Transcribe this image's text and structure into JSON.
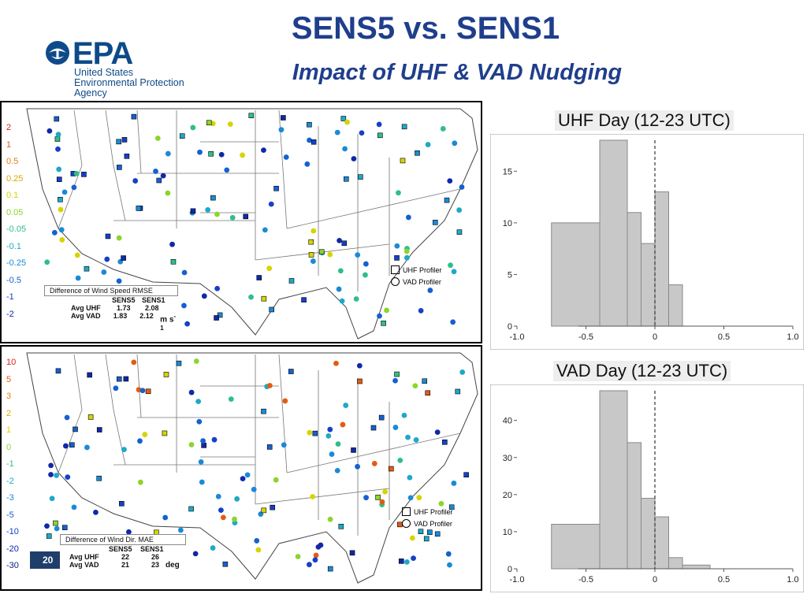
{
  "logo": {
    "word": "EPA",
    "line1": "United States",
    "line2": "Environmental Protection",
    "line3": "Agency"
  },
  "header": {
    "title": "SENS5 vs. SENS1",
    "subtitle": "Impact of UHF & VAD Nudging"
  },
  "colors": {
    "title": "#1f3e8c",
    "epa": "#0e4a8a",
    "bar": "#c8c8c8"
  },
  "map_top": {
    "scale": [
      {
        "label": "2",
        "color": "#d62020"
      },
      {
        "label": "1",
        "color": "#e55a10"
      },
      {
        "label": "0.5",
        "color": "#e87d12"
      },
      {
        "label": "0.25",
        "color": "#d9a800"
      },
      {
        "label": "0.1",
        "color": "#d6d400"
      },
      {
        "label": "0.05",
        "color": "#8ad62a"
      },
      {
        "label": "-0.05",
        "color": "#2fbf86"
      },
      {
        "label": "-0.1",
        "color": "#1fa8c8"
      },
      {
        "label": "-0.25",
        "color": "#1a8ad6"
      },
      {
        "label": "-0.5",
        "color": "#1660d0"
      },
      {
        "label": "-1",
        "color": "#1540c8"
      },
      {
        "label": "-2",
        "color": "#1028a8"
      }
    ],
    "stats_title": "Difference of Wind Speed RMSE",
    "col1": "SENS5",
    "col2": "SENS1",
    "row1_label": "Avg UHF",
    "row1_v1": "1.73",
    "row1_v2": "2.08",
    "row2_label": "Avg VAD",
    "row2_v1": "1.83",
    "row2_v2": "2.12",
    "unit": "m s",
    "unit_sup": "-1",
    "legend_uhf": "UHF Profiler",
    "legend_vad": "VAD Profiler"
  },
  "map_bottom": {
    "scale": [
      {
        "label": "10",
        "color": "#d62020"
      },
      {
        "label": "5",
        "color": "#e55a10"
      },
      {
        "label": "3",
        "color": "#e87d12"
      },
      {
        "label": "2",
        "color": "#d9a800"
      },
      {
        "label": "1",
        "color": "#d6d400"
      },
      {
        "label": "0",
        "color": "#8ad62a"
      },
      {
        "label": "-1",
        "color": "#2fbf86"
      },
      {
        "label": "-2",
        "color": "#1fa8c8"
      },
      {
        "label": "-3",
        "color": "#1a8ad6"
      },
      {
        "label": "-5",
        "color": "#1660d0"
      },
      {
        "label": "-10",
        "color": "#1540c8"
      },
      {
        "label": "-20",
        "color": "#1028a8"
      },
      {
        "label": "-30",
        "color": "#0b1d80"
      }
    ],
    "page_badge": "20",
    "stats_title": "Difference of Wind Dir. MAE",
    "col1": "SENS5",
    "col2": "SENS1",
    "row1_label": "Avg UHF",
    "row1_v1": "22",
    "row1_v2": "26",
    "row2_label": "Avg VAD",
    "row2_v1": "21",
    "row2_v2": "23",
    "unit": "deg",
    "legend_uhf": "UHF Profiler",
    "legend_vad": "VAD Profiler"
  },
  "chart_data": [
    {
      "type": "bar",
      "title": "UHF Day (12-23 UTC)",
      "xlim": [
        -1.0,
        1.0
      ],
      "ylim": [
        0,
        18
      ],
      "xticks": [
        "-1.0",
        "-0.5",
        "0",
        "0.5",
        "1.0"
      ],
      "yticks": [
        "0",
        "5",
        "10",
        "15"
      ],
      "ytick_values": [
        0,
        5,
        10,
        15
      ],
      "xtick_values": [
        -1.0,
        -0.5,
        0,
        0.5,
        1.0
      ],
      "bins": [
        {
          "x0": -0.75,
          "x1": -0.4,
          "value": 10
        },
        {
          "x0": -0.4,
          "x1": -0.2,
          "value": 18
        },
        {
          "x0": -0.2,
          "x1": -0.1,
          "value": 11
        },
        {
          "x0": -0.1,
          "x1": 0.0,
          "value": 8
        },
        {
          "x0": 0.0,
          "x1": 0.1,
          "value": 13
        },
        {
          "x0": 0.1,
          "x1": 0.2,
          "value": 4
        }
      ],
      "zero_line": 0
    },
    {
      "type": "bar",
      "title": "VAD Day (12-23 UTC)",
      "xlim": [
        -1.0,
        1.0
      ],
      "ylim": [
        0,
        48
      ],
      "xticks": [
        "-1.0",
        "-0.5",
        "0",
        "0.5",
        "1.0"
      ],
      "yticks": [
        "0",
        "10",
        "20",
        "30",
        "40"
      ],
      "ytick_values": [
        0,
        10,
        20,
        30,
        40
      ],
      "xtick_values": [
        -1.0,
        -0.5,
        0,
        0.5,
        1.0
      ],
      "bins": [
        {
          "x0": -0.75,
          "x1": -0.4,
          "value": 12
        },
        {
          "x0": -0.4,
          "x1": -0.2,
          "value": 48
        },
        {
          "x0": -0.2,
          "x1": -0.1,
          "value": 34
        },
        {
          "x0": -0.1,
          "x1": 0.0,
          "value": 19
        },
        {
          "x0": 0.0,
          "x1": 0.1,
          "value": 14
        },
        {
          "x0": 0.1,
          "x1": 0.2,
          "value": 3
        },
        {
          "x0": 0.2,
          "x1": 0.4,
          "value": 1
        }
      ],
      "zero_line": 0
    }
  ]
}
